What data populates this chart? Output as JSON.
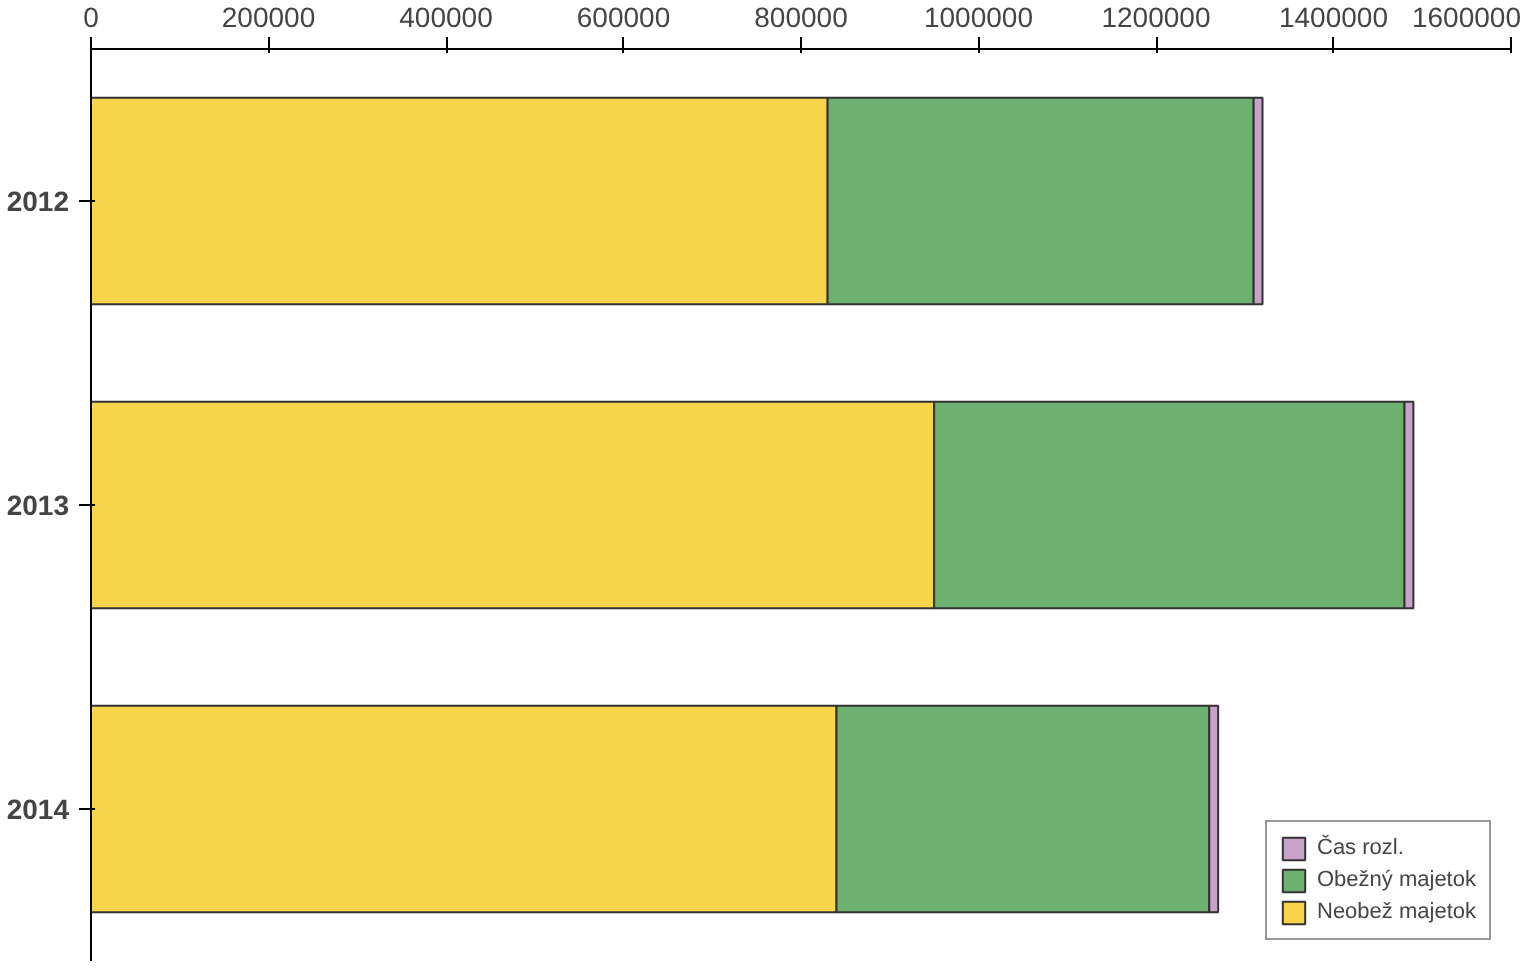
{
  "chart_data": {
    "type": "bar",
    "orientation": "horizontal",
    "stacked": true,
    "categories": [
      "2012",
      "2013",
      "2014"
    ],
    "series": [
      {
        "name": "Neobež majetok",
        "color": "#f8d44a",
        "values": [
          830000,
          950000,
          840000
        ]
      },
      {
        "name": "Obežný majetok",
        "color": "#6db070",
        "values": [
          480000,
          530000,
          420000
        ]
      },
      {
        "name": "Čas rozl.",
        "color": "#c8a2c8",
        "values": [
          10000,
          10000,
          10000
        ]
      }
    ],
    "xlim": [
      0,
      1600000
    ],
    "xticks": [
      0,
      200000,
      400000,
      600000,
      800000,
      1000000,
      1200000,
      1400000,
      1600000
    ],
    "grid": false,
    "legend": "bottom right"
  }
}
